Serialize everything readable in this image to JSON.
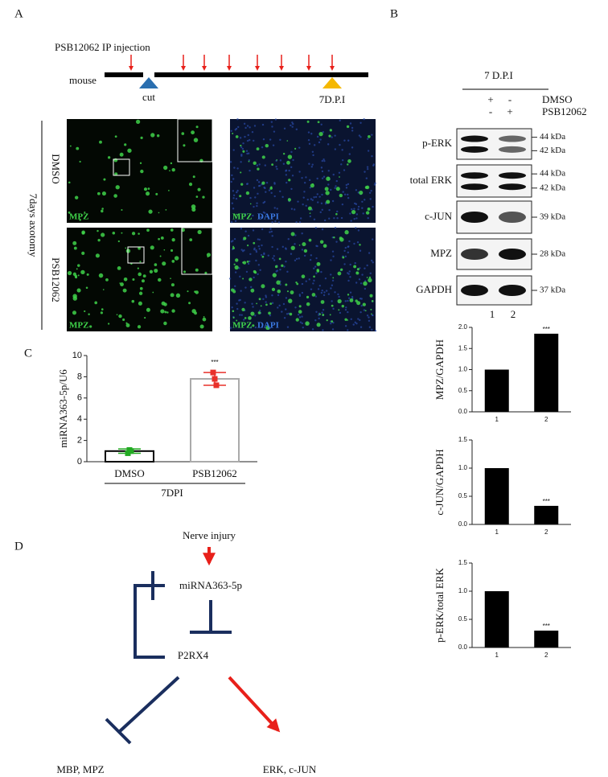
{
  "panel_labels": [
    "A",
    "B",
    "C",
    "D"
  ],
  "panel_a": {
    "injection": "PSB12062 IP injection",
    "mouse": "mouse",
    "cut": "cut",
    "endpoint": "7D.P.I",
    "group_label": "7days axotomy",
    "rows": [
      "DMSO",
      "PSB12062"
    ],
    "stain_mpz": "MPZ",
    "stain_dapi": "DAPI"
  },
  "panel_b": {
    "timepoint": "7 D.P.I",
    "dmso_row": [
      "+",
      "-",
      "DMSO"
    ],
    "psb_row": [
      "-",
      "+",
      "PSB12062"
    ],
    "blots": [
      {
        "name": "p-ERK",
        "sizes": [
          "44 kDa",
          "42 kDa"
        ]
      },
      {
        "name": "total ERK",
        "sizes": [
          "44 kDa",
          "42 kDa"
        ]
      },
      {
        "name": "c-JUN",
        "sizes": [
          "39 kDa"
        ]
      },
      {
        "name": "MPZ",
        "sizes": [
          "28 kDa"
        ]
      },
      {
        "name": "GAPDH",
        "sizes": [
          "37 kDa"
        ]
      }
    ],
    "lanes": [
      "1",
      "2"
    ]
  },
  "panel_d": {
    "nodes": [
      "Nerve injury",
      "miRNA363-5p",
      "P2RX4",
      "MBP, MPZ",
      "ERK, c-JUN"
    ]
  },
  "chart_data": [
    {
      "type": "bar",
      "y_label": "miRNA363-5p/U6",
      "x_label": "7DPI",
      "categories": [
        "DMSO",
        "PSB12062"
      ],
      "values": [
        1.0,
        7.8
      ],
      "errors": [
        0.2,
        0.6
      ],
      "points": [
        [
          0.8,
          1.1,
          1.0
        ],
        [
          8.4,
          7.8,
          7.2
        ]
      ],
      "edge_colors": [
        "#000000",
        "#aaaaaa"
      ],
      "point_colors": [
        "#22aa22",
        "#e8302a"
      ],
      "annotation": "***",
      "ylim": [
        0,
        10
      ],
      "yticks": [
        0,
        2,
        4,
        6,
        8,
        10
      ]
    },
    {
      "type": "bar",
      "y_label": "MPZ/GAPDH",
      "categories": [
        "1",
        "2"
      ],
      "values": [
        1.0,
        1.85
      ],
      "color": "#000000",
      "annotation": "***",
      "ylim": [
        0,
        2
      ],
      "yticks": [
        {
          "value": 0,
          "label": "0.0"
        },
        {
          "value": 0.5,
          "label": "0.5"
        },
        {
          "value": 1,
          "label": "1.0"
        },
        {
          "value": 1.5,
          "label": "1.5"
        },
        {
          "value": 2,
          "label": "2.0"
        }
      ]
    },
    {
      "type": "bar",
      "y_label": "c-JUN/GAPDH",
      "categories": [
        "1",
        "2"
      ],
      "values": [
        1.0,
        0.33
      ],
      "color": "#000000",
      "annotation": "***",
      "ylim": [
        0,
        1.5
      ],
      "yticks": [
        {
          "value": 0,
          "label": "0.0"
        },
        {
          "value": 0.5,
          "label": "0.5"
        },
        {
          "value": 1,
          "label": "1.0"
        },
        {
          "value": 1.5,
          "label": "1.5"
        }
      ]
    },
    {
      "type": "bar",
      "y_label": "p-ERK/total ERK",
      "categories": [
        "1",
        "2"
      ],
      "values": [
        1.0,
        0.3
      ],
      "color": "#000000",
      "annotation": "***",
      "ylim": [
        0,
        1.5
      ],
      "yticks": [
        {
          "value": 0,
          "label": "0.0"
        },
        {
          "value": 0.5,
          "label": "0.5"
        },
        {
          "value": 1,
          "label": "1.0"
        },
        {
          "value": 1.5,
          "label": "1.5"
        }
      ]
    }
  ]
}
